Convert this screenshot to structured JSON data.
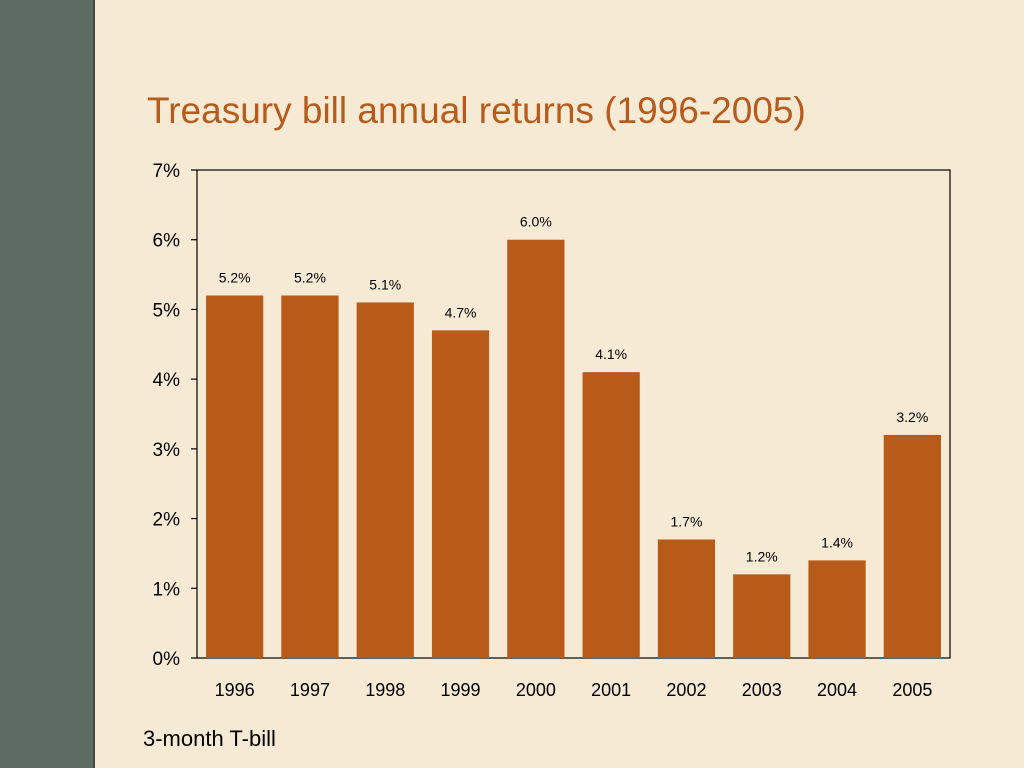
{
  "slide": {
    "title": "Treasury bill annual returns (1996-2005)",
    "footnote": "3-month T-bill"
  },
  "colors": {
    "background": "#f6ead5",
    "sidebar": "#5d6b62",
    "title": "#b65b1c",
    "bar": "#b85a18"
  },
  "chart_data": {
    "type": "bar",
    "title": "Treasury bill annual returns (1996-2005)",
    "xlabel": "",
    "ylabel": "",
    "categories": [
      "1996",
      "1997",
      "1998",
      "1999",
      "2000",
      "2001",
      "2002",
      "2003",
      "2004",
      "2005"
    ],
    "values": [
      5.2,
      5.2,
      5.1,
      4.7,
      6.0,
      4.1,
      1.7,
      1.2,
      1.4,
      3.2
    ],
    "value_labels": [
      "5.2%",
      "5.2%",
      "5.1%",
      "4.7%",
      "6.0%",
      "4.1%",
      "1.7%",
      "1.2%",
      "1.4%",
      "3.2%"
    ],
    "ylim": [
      0,
      7
    ],
    "yticks": [
      0,
      1,
      2,
      3,
      4,
      5,
      6,
      7
    ],
    "ytick_labels": [
      "0%",
      "1%",
      "2%",
      "3%",
      "4%",
      "5%",
      "6%",
      "7%"
    ],
    "grid": false,
    "legend": "none"
  }
}
